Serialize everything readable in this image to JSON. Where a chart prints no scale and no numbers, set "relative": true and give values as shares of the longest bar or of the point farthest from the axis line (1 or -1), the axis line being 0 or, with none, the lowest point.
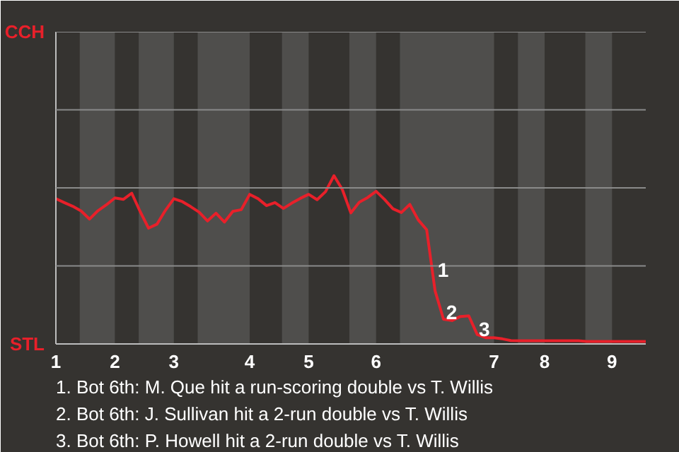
{
  "chart_data": {
    "type": "line",
    "relative": true,
    "categories": [
      "1",
      null,
      null,
      null,
      null,
      null,
      null,
      "2",
      null,
      null,
      null,
      null,
      null,
      null,
      "3",
      null,
      null,
      null,
      null,
      null,
      null,
      null,
      null,
      "4",
      null,
      null,
      null,
      null,
      null,
      null,
      "5",
      null,
      null,
      null,
      null,
      null,
      null,
      null,
      "6",
      null,
      null,
      null,
      null,
      null,
      null,
      null,
      null,
      null,
      null,
      null,
      null,
      null,
      "7",
      null,
      null,
      null,
      null,
      null,
      "8",
      null,
      null,
      null,
      null,
      null,
      null,
      null,
      "9",
      null,
      null,
      null,
      null
    ],
    "ref_lines": [
      {
        "axis": "y",
        "value": 0.464,
        "color": "#8a8a8a"
      },
      {
        "axis": "y",
        "value": 0.928,
        "color": "#8a8a8a"
      },
      {
        "axis": "y",
        "value": 1.391,
        "color": "#8a8a8a"
      },
      {
        "axis": "y",
        "value": 1.855,
        "color": "#8a8a8a"
      }
    ],
    "marker": "none",
    "line_style": "solid",
    "series": [
      {
        "color": "#e8202a",
        "values": [
          0.863,
          0.84,
          0.818,
          0.79,
          0.742,
          0.792,
          0.827,
          0.868,
          0.859,
          0.896,
          0.787,
          0.688,
          0.712,
          0.794,
          0.863,
          0.846,
          0.816,
          0.783,
          0.731,
          0.777,
          0.724,
          0.788,
          0.798,
          0.889,
          0.863,
          0.822,
          0.84,
          0.805,
          0.837,
          0.865,
          0.889,
          0.857,
          0.905,
          1,
          0.917,
          0.779,
          0.842,
          0.87,
          0.907,
          0.859,
          0.803,
          0.781,
          0.829,
          0.737,
          0.679,
          0.315,
          0.147,
          0.139,
          0.163,
          0.167,
          0.056,
          0.037,
          0.037,
          0.03,
          0.02,
          0.019,
          0.019,
          0.019,
          0.019,
          0.019,
          0.019,
          0.019,
          0.019,
          0.015,
          0.015,
          0.015,
          0.015,
          0.015,
          0.015,
          0.015,
          0.015
        ]
      }
    ],
    "annotations": [
      "CCH",
      "STL",
      "1",
      "2",
      "3",
      "1. Bot 6th: M. Que hit a run-scoring double vs T. Willis",
      "2. Bot 6th: J. Sullivan hit a 2-run double vs T. Willis",
      "3. Bot 6th: P. Howell hit a 2-run double vs T. Willis"
    ]
  }
}
